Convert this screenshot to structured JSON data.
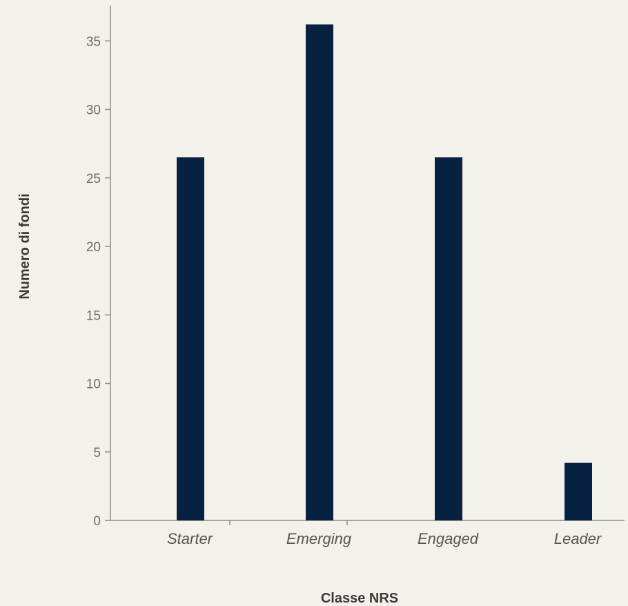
{
  "chart_data": {
    "type": "bar",
    "categories": [
      "Starter",
      "Emerging",
      "Engaged",
      "Leader"
    ],
    "values": [
      26.5,
      36.2,
      26.5,
      4.2
    ],
    "xlabel": "Classe NRS",
    "ylabel": "Numero di fondi",
    "ylim": [
      0,
      37.5
    ],
    "yticks": [
      0,
      5,
      10,
      15,
      20,
      25,
      30,
      35
    ],
    "grid": false,
    "colors": {
      "bar": "#062240",
      "background": "#f4f1eb",
      "axis": "#8a8a8a"
    }
  }
}
